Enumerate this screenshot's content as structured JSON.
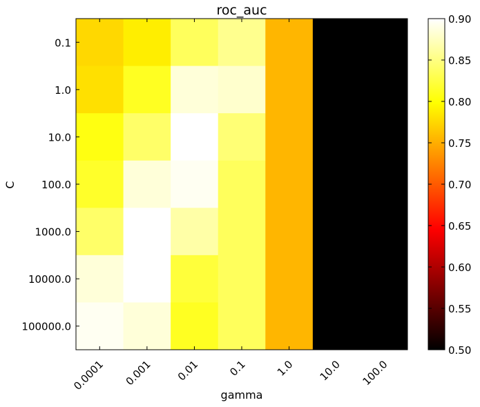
{
  "chart_data": {
    "type": "heatmap",
    "title": "roc_auc",
    "xlabel": "gamma",
    "ylabel": "C",
    "x_categories": [
      "0.0001",
      "0.001",
      "0.01",
      "0.1",
      "1.0",
      "10.0",
      "100.0"
    ],
    "y_categories": [
      "0.1",
      "1.0",
      "10.0",
      "100.0",
      "1000.0",
      "10000.0",
      "100000.0"
    ],
    "values": [
      [
        0.775,
        0.788,
        0.835,
        0.855,
        0.755,
        0.5,
        0.5
      ],
      [
        0.78,
        0.812,
        0.885,
        0.88,
        0.755,
        0.5,
        0.5
      ],
      [
        0.805,
        0.84,
        0.9,
        0.845,
        0.755,
        0.5,
        0.5
      ],
      [
        0.815,
        0.885,
        0.895,
        0.835,
        0.755,
        0.5,
        0.5
      ],
      [
        0.84,
        0.9,
        0.865,
        0.835,
        0.755,
        0.5,
        0.5
      ],
      [
        0.885,
        0.9,
        0.822,
        0.835,
        0.755,
        0.5,
        0.5
      ],
      [
        0.895,
        0.885,
        0.812,
        0.835,
        0.755,
        0.5,
        0.5
      ]
    ],
    "colormap": "hot",
    "vmin": 0.5,
    "vmax": 0.9,
    "colorbar_ticks": [
      "0.50",
      "0.55",
      "0.60",
      "0.65",
      "0.70",
      "0.75",
      "0.80",
      "0.85",
      "0.90"
    ]
  }
}
